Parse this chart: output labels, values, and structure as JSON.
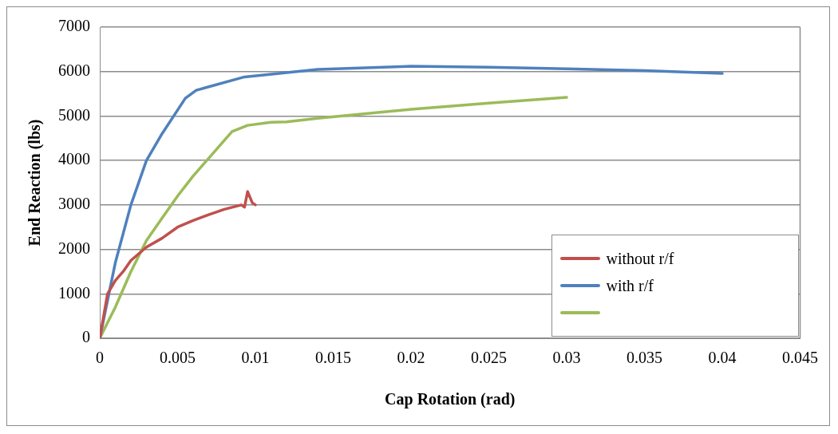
{
  "chart_data": {
    "type": "line",
    "xlabel": "Cap Rotation (rad)",
    "ylabel": "End Reaction (lbs)",
    "xlim": [
      0,
      0.045
    ],
    "xticks": [
      0,
      0.005,
      0.01,
      0.015,
      0.02,
      0.025,
      0.03,
      0.035,
      0.04,
      0.045
    ],
    "ylim": [
      0,
      7000
    ],
    "yticks": [
      0,
      1000,
      2000,
      3000,
      4000,
      5000,
      6000,
      7000
    ],
    "grid": "y",
    "legend": "bottom right",
    "marker": "none",
    "line_style": "solid",
    "series": [
      {
        "name": "without r/f",
        "color": "#c0504d",
        "x": [
          0,
          0.0005,
          0.001,
          0.0015,
          0.002,
          0.003,
          0.004,
          0.005,
          0.006,
          0.007,
          0.008,
          0.0091,
          0.0093,
          0.0095,
          0.0098,
          0.01
        ],
        "values": [
          0,
          1000,
          1300,
          1500,
          1750,
          2050,
          2250,
          2500,
          2650,
          2780,
          2900,
          3000,
          2950,
          3300,
          3050,
          3000
        ]
      },
      {
        "name": "with r/f",
        "color": "#4f81bd",
        "x": [
          0,
          0.001,
          0.002,
          0.003,
          0.004,
          0.0055,
          0.0062,
          0.0093,
          0.014,
          0.02,
          0.025,
          0.03,
          0.035,
          0.04
        ],
        "values": [
          0,
          1700,
          3000,
          4000,
          4600,
          5400,
          5580,
          5880,
          6050,
          6120,
          6100,
          6060,
          6020,
          5960
        ]
      },
      {
        "color": "#9bbb59",
        "x": [
          0,
          0.001,
          0.002,
          0.003,
          0.004,
          0.005,
          0.006,
          0.007,
          0.0085,
          0.0095,
          0.011,
          0.012,
          0.014,
          0.02,
          0.025,
          0.03
        ],
        "values": [
          0,
          700,
          1500,
          2200,
          2700,
          3200,
          3650,
          4050,
          4650,
          4790,
          4860,
          4870,
          4950,
          5150,
          5290,
          5420
        ]
      }
    ]
  }
}
